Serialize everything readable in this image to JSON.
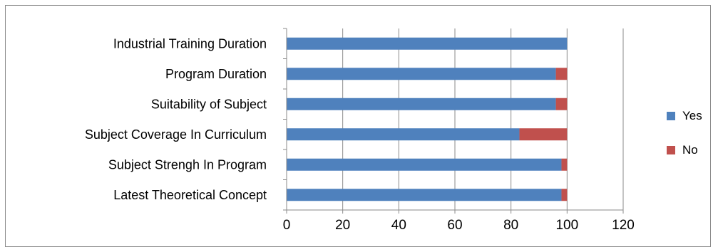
{
  "chart_data": {
    "type": "bar",
    "orientation": "horizontal",
    "stacked": true,
    "categories": [
      "Industrial Training Duration",
      "Program Duration",
      "Suitability of Subject",
      "Subject Coverage In Curriculum",
      "Subject Strengh In Program",
      "Latest Theoretical Concept"
    ],
    "series": [
      {
        "name": "Yes",
        "color": "#4F81BD",
        "values": [
          100,
          96,
          96,
          83,
          98,
          98
        ]
      },
      {
        "name": "No",
        "color": "#C0504D",
        "values": [
          0,
          4,
          4,
          17,
          2,
          2
        ]
      }
    ],
    "xlim": [
      0,
      120
    ],
    "xticks": [
      "0",
      "20",
      "40",
      "60",
      "80",
      "100",
      "120"
    ],
    "grid": "vertical",
    "legend_position": "right"
  }
}
